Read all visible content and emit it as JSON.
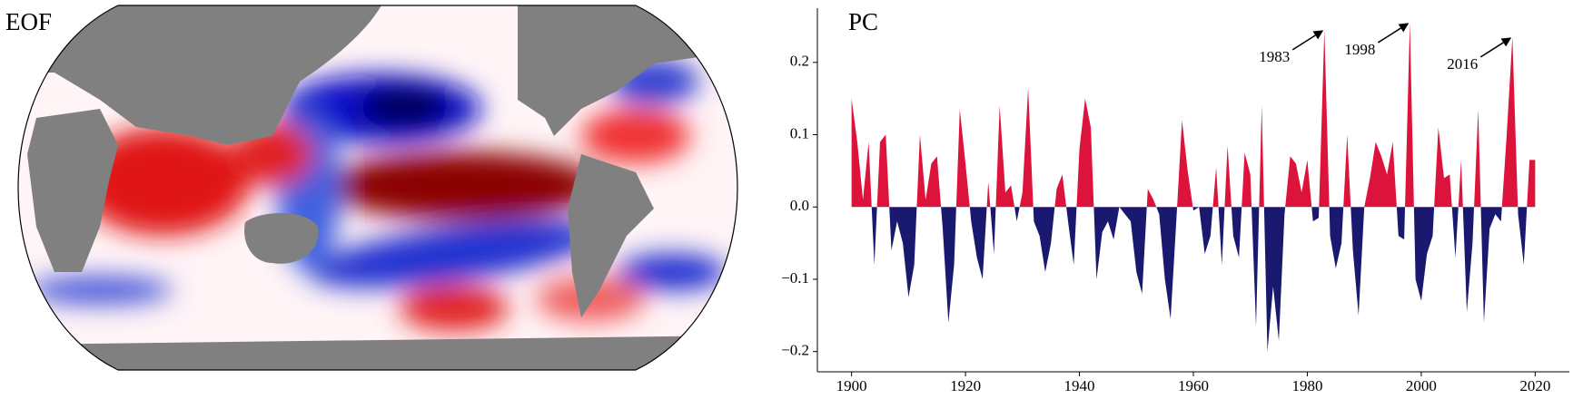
{
  "chart_data": [
    {
      "type": "map",
      "title": "EOF"
    },
    {
      "type": "area",
      "title": "PC",
      "x": [
        1900,
        1901,
        1902,
        1903,
        1904,
        1905,
        1906,
        1907,
        1908,
        1909,
        1910,
        1911,
        1912,
        1913,
        1914,
        1915,
        1916,
        1917,
        1918,
        1919,
        1920,
        1921,
        1922,
        1923,
        1924,
        1925,
        1926,
        1927,
        1928,
        1929,
        1930,
        1931,
        1932,
        1933,
        1934,
        1935,
        1936,
        1937,
        1938,
        1939,
        1940,
        1941,
        1942,
        1943,
        1944,
        1945,
        1946,
        1947,
        1948,
        1949,
        1950,
        1951,
        1952,
        1953,
        1954,
        1955,
        1956,
        1957,
        1958,
        1959,
        1960,
        1961,
        1962,
        1963,
        1964,
        1965,
        1966,
        1967,
        1968,
        1969,
        1970,
        1971,
        1972,
        1973,
        1974,
        1975,
        1976,
        1977,
        1978,
        1979,
        1980,
        1981,
        1982,
        1983,
        1984,
        1985,
        1986,
        1987,
        1988,
        1989,
        1990,
        1991,
        1992,
        1993,
        1994,
        1995,
        1996,
        1997,
        1998,
        1999,
        2000,
        2001,
        2002,
        2003,
        2004,
        2005,
        2006,
        2007,
        2008,
        2009,
        2010,
        2011,
        2012,
        2013,
        2014,
        2015,
        2016,
        2017,
        2018,
        2019,
        2020
      ],
      "values": [
        0.15,
        0.09,
        0.01,
        0.09,
        -0.08,
        0.09,
        0.1,
        -0.06,
        -0.02,
        -0.05,
        -0.125,
        -0.08,
        0.1,
        0.01,
        0.06,
        0.07,
        -0.03,
        -0.16,
        -0.08,
        0.135,
        0.06,
        -0.02,
        -0.07,
        -0.1,
        0.035,
        -0.065,
        0.14,
        0.02,
        0.03,
        -0.02,
        0.02,
        0.165,
        -0.02,
        -0.04,
        -0.09,
        -0.05,
        0.025,
        0.045,
        -0.02,
        -0.08,
        0.08,
        0.15,
        0.11,
        -0.1,
        -0.035,
        -0.02,
        -0.045,
        0.0,
        -0.01,
        -0.02,
        -0.09,
        -0.12,
        0.025,
        0.01,
        -0.01,
        -0.1,
        -0.155,
        -0.02,
        0.12,
        0.05,
        -0.005,
        0.0,
        -0.065,
        -0.04,
        0.055,
        -0.08,
        0.085,
        -0.04,
        -0.07,
        0.075,
        0.045,
        -0.165,
        0.14,
        -0.2,
        -0.11,
        -0.185,
        -0.01,
        0.07,
        0.06,
        0.02,
        0.065,
        -0.02,
        -0.015,
        0.245,
        -0.04,
        -0.085,
        -0.05,
        0.1,
        -0.06,
        -0.15,
        0.0,
        0.04,
        0.09,
        0.07,
        0.045,
        0.09,
        -0.04,
        -0.045,
        0.255,
        -0.1,
        -0.13,
        -0.065,
        -0.04,
        0.11,
        0.04,
        0.045,
        -0.07,
        0.065,
        -0.145,
        -0.05,
        0.135,
        -0.16,
        -0.03,
        -0.01,
        -0.02,
        0.1,
        0.235,
        -0.01,
        -0.08,
        0.065,
        0.065
      ],
      "positive_color": "#dc143c",
      "negative_color": "#191970",
      "xlim": [
        1894,
        2026
      ],
      "ylim": [
        -0.228,
        0.275
      ],
      "xticks": [
        1900,
        1920,
        1940,
        1960,
        1980,
        2000,
        2020
      ],
      "yticks": [
        {
          "value": -0.2,
          "label": "−0.2"
        },
        {
          "value": -0.1,
          "label": "−0.1"
        },
        {
          "value": 0,
          "label": "0.0"
        },
        0.1,
        0.2
      ],
      "annotations": [
        {
          "text": "1983",
          "x": 1983
        },
        {
          "text": "1998",
          "x": 1998
        },
        {
          "text": "2016",
          "x": 2016
        }
      ]
    }
  ]
}
